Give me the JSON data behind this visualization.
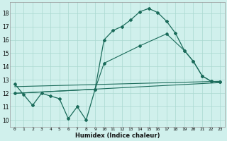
{
  "xlabel": "Humidex (Indice chaleur)",
  "bg_color": "#d0f0ec",
  "grid_color": "#aad8d0",
  "line_color": "#1a6b5a",
  "xlim": [
    -0.5,
    23.5
  ],
  "ylim": [
    9.5,
    18.8
  ],
  "yticks": [
    10,
    11,
    12,
    13,
    14,
    15,
    16,
    17,
    18
  ],
  "xticks": [
    0,
    1,
    2,
    3,
    4,
    5,
    6,
    7,
    8,
    9,
    10,
    11,
    12,
    13,
    14,
    15,
    16,
    17,
    18,
    19,
    20,
    21,
    22,
    23
  ],
  "line1_x": [
    0,
    1,
    2,
    3,
    4,
    5,
    6,
    7,
    8,
    9,
    10,
    11,
    12,
    13,
    14,
    15,
    16,
    17,
    18,
    19,
    20,
    21,
    22,
    23
  ],
  "line1_y": [
    12.7,
    11.9,
    11.1,
    12.0,
    11.8,
    11.6,
    10.1,
    11.0,
    10.0,
    12.3,
    16.0,
    16.7,
    17.0,
    17.5,
    18.1,
    18.35,
    18.05,
    17.4,
    16.5,
    15.2,
    14.4,
    13.3,
    12.9,
    12.85
  ],
  "line2_x": [
    0,
    9,
    10,
    14,
    17,
    19,
    20,
    21,
    22,
    23
  ],
  "line2_y": [
    12.0,
    12.3,
    14.25,
    15.55,
    16.45,
    15.2,
    14.4,
    13.3,
    12.9,
    12.85
  ],
  "line3_x": [
    0,
    23
  ],
  "line3_y": [
    12.5,
    12.9
  ],
  "line4_x": [
    0,
    23
  ],
  "line4_y": [
    12.0,
    12.8
  ]
}
